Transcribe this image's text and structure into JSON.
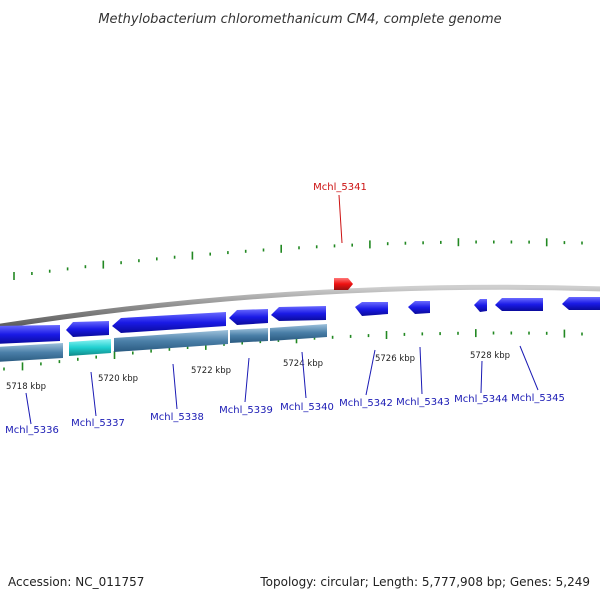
{
  "title": "Methylobacterium chloromethanicum CM4, complete genome",
  "footer": {
    "accession": "Accession: NC_011757",
    "summary": "Topology: circular; Length: 5,777,908 bp; Genes: 5,249"
  },
  "colors": {
    "forward_gene": "#1a1ae6",
    "reverse_gene": "#4a7fa8",
    "highlight_gene": "#20d0d0",
    "selected_gene": "#ee1111",
    "tick": "#228822",
    "backbone": "#8a8a8a",
    "label": "#1a1ab4",
    "selected_label": "#cc1111"
  },
  "ticks": {
    "labels": [
      "5718 kbp",
      "5720 kbp",
      "5722 kbp",
      "5724 kbp",
      "5726 kbp",
      "5728 kbp"
    ]
  },
  "genes": [
    {
      "id": "Mchl_5336"
    },
    {
      "id": "Mchl_5337"
    },
    {
      "id": "Mchl_5338"
    },
    {
      "id": "Mchl_5339"
    },
    {
      "id": "Mchl_5340"
    },
    {
      "id": "Mchl_5341",
      "selected": true
    },
    {
      "id": "Mchl_5342"
    },
    {
      "id": "Mchl_5343"
    },
    {
      "id": "Mchl_5344"
    },
    {
      "id": "Mchl_5345"
    }
  ]
}
